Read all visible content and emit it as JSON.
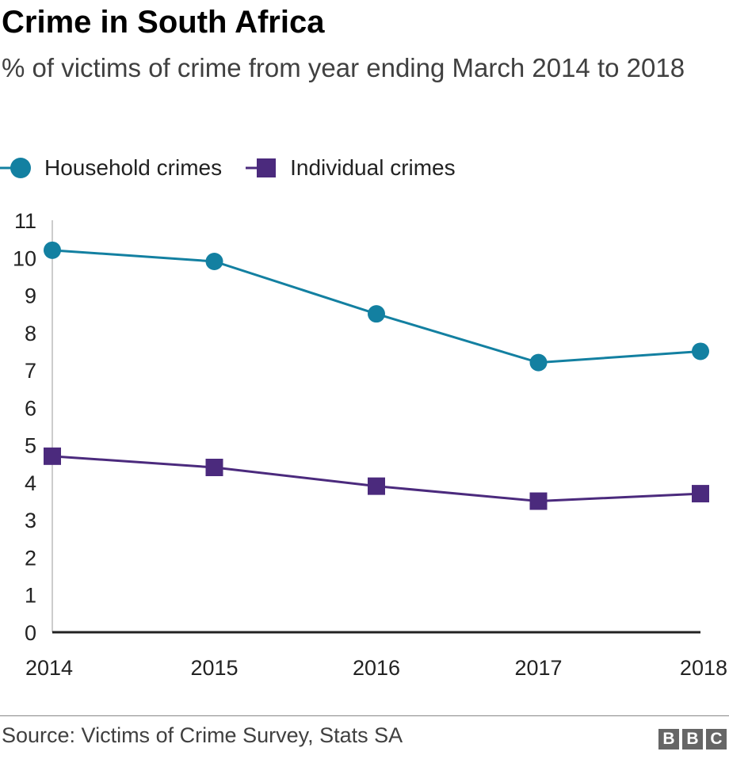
{
  "title": "Crime in South Africa",
  "subtitle": "% of victims of crime from year ending March 2014 to 2018",
  "source": "Source: Victims of Crime Survey, Stats SA",
  "logo": [
    "B",
    "B",
    "C"
  ],
  "chart_data": {
    "type": "line",
    "title": "Crime in South Africa",
    "x": [
      "2014",
      "2015",
      "2016",
      "2017",
      "2018"
    ],
    "ylim": [
      0,
      11
    ],
    "yticks": [
      "0",
      "1",
      "2",
      "3",
      "4",
      "5",
      "6",
      "7",
      "8",
      "9",
      "10",
      "11"
    ],
    "legend_position": "top-left",
    "series": [
      {
        "name": "Household crimes",
        "color": "#1380a1",
        "marker": "circle",
        "values": [
          10.2,
          9.9,
          8.5,
          7.2,
          7.5
        ]
      },
      {
        "name": "Individual crimes",
        "color": "#4b2a7d",
        "marker": "square",
        "values": [
          4.7,
          4.4,
          3.9,
          3.5,
          3.7
        ]
      }
    ]
  }
}
